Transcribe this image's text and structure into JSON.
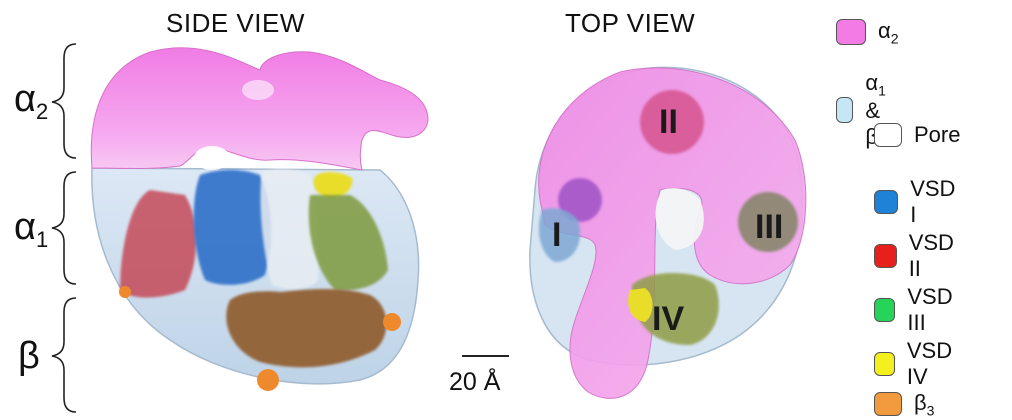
{
  "titles": {
    "side": "SIDE VIEW",
    "top": "TOP VIEW"
  },
  "subunits": [
    {
      "symbol": "α",
      "sub": "2"
    },
    {
      "symbol": "α",
      "sub": "1"
    },
    {
      "symbol": "β",
      "sub": ""
    }
  ],
  "domains": [
    "I",
    "II",
    "III",
    "IV"
  ],
  "scale_bar": "20 Å",
  "legend": [
    {
      "label": "α",
      "sub": "2",
      "tail": "",
      "color": "#f27be6"
    },
    {
      "label": "α",
      "sub": "1",
      "tail": " & β",
      "color": "#c6e6f6"
    },
    {
      "label": "Pore",
      "sub": "",
      "tail": "",
      "color": "#ffffff"
    },
    {
      "label": "VSD I",
      "sub": "",
      "tail": "",
      "color": "#1f82d6"
    },
    {
      "label": "VSD II",
      "sub": "",
      "tail": "",
      "color": "#e8201c"
    },
    {
      "label": "VSD III",
      "sub": "",
      "tail": "",
      "color": "#26d45a"
    },
    {
      "label": "VSD IV",
      "sub": "",
      "tail": "",
      "color": "#f3f01e"
    },
    {
      "label": "β",
      "sub": "3",
      "tail": "",
      "color": "#f29a3e"
    }
  ]
}
